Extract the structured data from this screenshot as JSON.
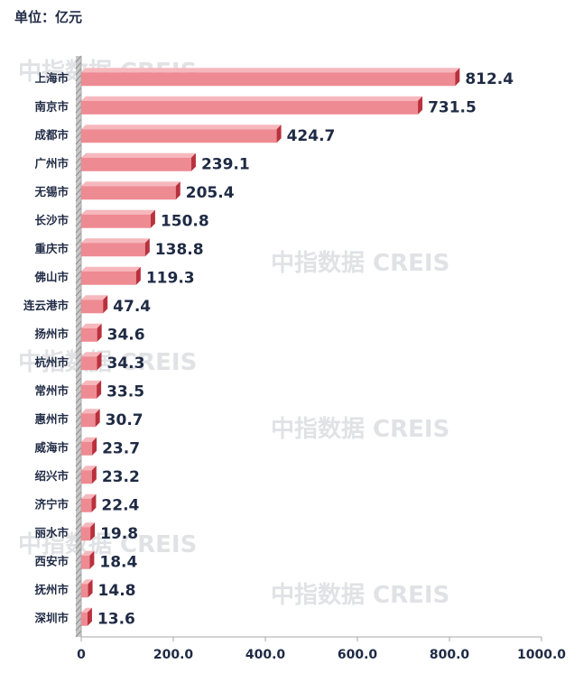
{
  "unit_label": "单位：亿元",
  "watermark": "中指数据 CREIS",
  "colors": {
    "bar_front": "#ee8a92",
    "bar_top": "#f6b8bd",
    "bar_side": "#b9313d",
    "axis": "#a9a9a9",
    "text": "#1f2a44"
  },
  "chart_data": {
    "type": "bar",
    "orientation": "horizontal",
    "categories": [
      "上海市",
      "南京市",
      "成都市",
      "广州市",
      "无锡市",
      "长沙市",
      "重庆市",
      "佛山市",
      "连云港市",
      "扬州市",
      "杭州市",
      "常州市",
      "惠州市",
      "威海市",
      "绍兴市",
      "济宁市",
      "丽水市",
      "西安市",
      "抚州市",
      "深圳市"
    ],
    "values": [
      812.4,
      731.5,
      424.7,
      239.1,
      205.4,
      150.8,
      138.8,
      119.3,
      47.4,
      34.6,
      34.3,
      33.5,
      30.7,
      23.7,
      23.2,
      22.4,
      19.8,
      18.4,
      14.8,
      13.6
    ],
    "value_labels": [
      "812.4",
      "731.5",
      "424.7",
      "239.1",
      "205.4",
      "150.8",
      "138.8",
      "119.3",
      "47.4",
      "34.6",
      "34.3",
      "33.5",
      "30.7",
      "23.7",
      "23.2",
      "22.4",
      "19.8",
      "18.4",
      "14.8",
      "13.6"
    ],
    "xlim": [
      0,
      1000
    ],
    "xticks": [
      0,
      200,
      400,
      600,
      800,
      1000
    ],
    "xtick_labels": [
      "0",
      "200.0",
      "400.0",
      "600.0",
      "800.0",
      "1000.0"
    ],
    "grid": false,
    "legend": "none"
  }
}
